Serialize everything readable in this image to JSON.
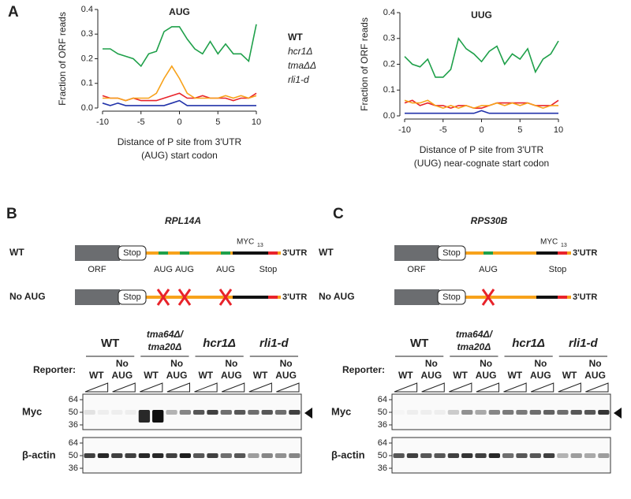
{
  "panel_a_letter": "A",
  "chart_data": [
    {
      "type": "line",
      "title": "AUG",
      "ylabel": "Fraction of ORF reads",
      "xlabel": [
        "Distance of P site from 3'UTR",
        "(AUG) start codon"
      ],
      "x": [
        -10,
        -9,
        -8,
        -7,
        -6,
        -5,
        -4,
        -3,
        -2,
        -1,
        0,
        1,
        2,
        3,
        4,
        5,
        6,
        7,
        8,
        9,
        10
      ],
      "xlim": [
        -10,
        10
      ],
      "xticks": [
        -10,
        -5,
        0,
        5,
        10
      ],
      "ylim": [
        0,
        0.4
      ],
      "yticks": [
        {
          "value": 0,
          "label": "0.0"
        },
        0.1,
        0.2,
        0.3,
        0.4
      ],
      "legend": "right",
      "series": [
        {
          "name": "WT",
          "color": "#2233aa",
          "values": [
            0.02,
            0.01,
            0.02,
            0.01,
            0.01,
            0.01,
            0.01,
            0.01,
            0.01,
            0.02,
            0.03,
            0.01,
            0.01,
            0.01,
            0.01,
            0.01,
            0.01,
            0.01,
            0.01,
            0.01,
            0.01
          ]
        },
        {
          "name": "hcr1Δ",
          "color": "#e8232a",
          "values": [
            0.05,
            0.04,
            0.04,
            0.03,
            0.04,
            0.03,
            0.03,
            0.03,
            0.04,
            0.05,
            0.06,
            0.04,
            0.04,
            0.05,
            0.04,
            0.04,
            0.04,
            0.03,
            0.04,
            0.04,
            0.06
          ]
        },
        {
          "name": "tmaΔΔ",
          "color": "#f7a21b",
          "values": [
            0.04,
            0.04,
            0.04,
            0.03,
            0.04,
            0.04,
            0.04,
            0.06,
            0.12,
            0.17,
            0.12,
            0.06,
            0.04,
            0.04,
            0.04,
            0.04,
            0.05,
            0.04,
            0.05,
            0.04,
            0.05
          ]
        },
        {
          "name": "rli1-d",
          "color": "#1fa04a",
          "values": [
            0.24,
            0.24,
            0.22,
            0.21,
            0.2,
            0.17,
            0.22,
            0.23,
            0.31,
            0.33,
            0.33,
            0.28,
            0.24,
            0.22,
            0.27,
            0.22,
            0.26,
            0.22,
            0.22,
            0.19,
            0.34
          ]
        }
      ]
    },
    {
      "type": "line",
      "title": "UUG",
      "ylabel": "Fraction of ORF reads",
      "xlabel": [
        "Distance of P site from 3'UTR",
        "(UUG) near-cognate start codon"
      ],
      "x": [
        -10,
        -9,
        -8,
        -7,
        -6,
        -5,
        -4,
        -3,
        -2,
        -1,
        0,
        1,
        2,
        3,
        4,
        5,
        6,
        7,
        8,
        9,
        10
      ],
      "xlim": [
        -10,
        10
      ],
      "xticks": [
        -10,
        -5,
        0,
        5,
        10
      ],
      "ylim": [
        0,
        0.4
      ],
      "yticks": [
        {
          "value": 0,
          "label": "0.0"
        },
        0.1,
        0.2,
        0.3,
        0.4
      ],
      "series": [
        {
          "color": "#2233aa",
          "values": [
            0.01,
            0.01,
            0.01,
            0.01,
            0.01,
            0.01,
            0.01,
            0.01,
            0.01,
            0.01,
            0.02,
            0.01,
            0.01,
            0.01,
            0.01,
            0.01,
            0.01,
            0.01,
            0.01,
            0.01,
            0.01
          ]
        },
        {
          "color": "#e8232a",
          "values": [
            0.05,
            0.06,
            0.04,
            0.05,
            0.04,
            0.04,
            0.03,
            0.04,
            0.04,
            0.03,
            0.03,
            0.04,
            0.05,
            0.05,
            0.05,
            0.05,
            0.05,
            0.04,
            0.04,
            0.04,
            0.06
          ]
        },
        {
          "color": "#f7a21b",
          "values": [
            0.06,
            0.05,
            0.05,
            0.06,
            0.04,
            0.03,
            0.04,
            0.03,
            0.04,
            0.03,
            0.04,
            0.04,
            0.05,
            0.04,
            0.05,
            0.04,
            0.05,
            0.04,
            0.03,
            0.04,
            0.04
          ]
        },
        {
          "color": "#1fa04a",
          "values": [
            0.23,
            0.2,
            0.19,
            0.22,
            0.15,
            0.15,
            0.18,
            0.3,
            0.26,
            0.24,
            0.21,
            0.25,
            0.27,
            0.2,
            0.24,
            0.22,
            0.26,
            0.17,
            0.22,
            0.24,
            0.29
          ]
        }
      ]
    }
  ],
  "panels": [
    {
      "letter": "B",
      "gene": "RPL14A",
      "constructs": [
        {
          "label": "WT",
          "stop": "Stop",
          "utr": "3'UTR",
          "orf": "ORF",
          "myc": "MYC",
          "myc_sub": "13",
          "sites": [
            "AUG",
            "AUG",
            "AUG"
          ],
          "end": "Stop"
        },
        {
          "label": "No AUG",
          "stop": "Stop",
          "utr": "3'UTR"
        }
      ],
      "blot": {
        "reporter": "Reporter:",
        "groups": [
          {
            "name": [
              "WT"
            ],
            "lanes": [
              [
                "WT"
              ],
              [
                "No",
                "AUG"
              ]
            ]
          },
          {
            "name": [
              "tma64Δ/",
              "tma20Δ"
            ],
            "lanes": [
              [
                "WT"
              ],
              [
                "No",
                "AUG"
              ]
            ]
          },
          {
            "name": [
              "hcr1Δ"
            ],
            "lanes": [
              [
                "WT"
              ],
              [
                "No",
                "AUG"
              ]
            ]
          },
          {
            "name": [
              "rli1-d"
            ],
            "lanes": [
              [
                "WT"
              ],
              [
                "No",
                "AUG"
              ]
            ]
          }
        ],
        "blots": [
          {
            "label": "Myc",
            "markers": [
              64,
              50,
              36
            ]
          },
          {
            "label": "β-actin",
            "markers": [
              64,
              50,
              36
            ]
          }
        ]
      }
    },
    {
      "letter": "C",
      "gene": "RPS30B",
      "constructs": [
        {
          "label": "WT",
          "stop": "Stop",
          "utr": "3'UTR",
          "orf": "ORF",
          "myc": "MYC",
          "myc_sub": "13",
          "sites": [
            "AUG"
          ],
          "end": "Stop"
        },
        {
          "label": "No AUG",
          "stop": "Stop",
          "utr": "3'UTR"
        }
      ],
      "blot": {
        "reporter": "Reporter:",
        "groups": [
          {
            "name": [
              "WT"
            ],
            "lanes": [
              [
                "WT"
              ],
              [
                "No",
                "AUG"
              ]
            ]
          },
          {
            "name": [
              "tma64Δ/",
              "tma20Δ"
            ],
            "lanes": [
              [
                "WT"
              ],
              [
                "No",
                "AUG"
              ]
            ]
          },
          {
            "name": [
              "hcr1Δ"
            ],
            "lanes": [
              [
                "WT"
              ],
              [
                "No",
                "AUG"
              ]
            ]
          },
          {
            "name": [
              "rli1-d"
            ],
            "lanes": [
              [
                "WT"
              ],
              [
                "No",
                "AUG"
              ]
            ]
          }
        ],
        "blots": [
          {
            "label": "Myc",
            "markers": [
              64,
              50,
              36
            ]
          },
          {
            "label": "β-actin",
            "markers": [
              64,
              50,
              36
            ]
          }
        ]
      }
    }
  ]
}
